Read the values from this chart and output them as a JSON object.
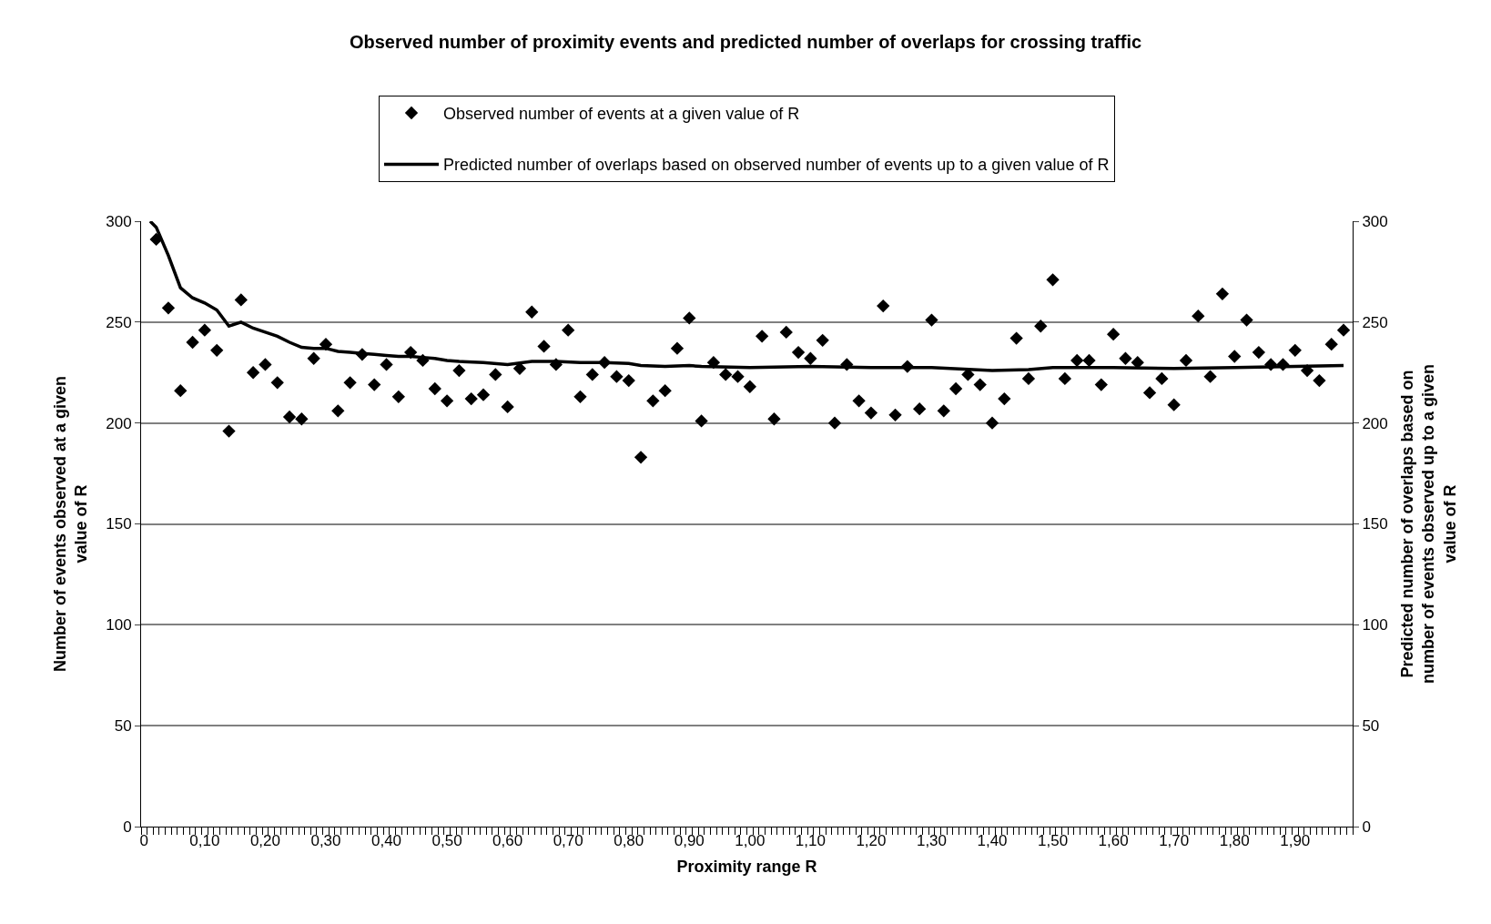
{
  "chart_data": {
    "type": "scatter",
    "title": "Observed number of proximity events and predicted number of overlaps for crossing traffic",
    "xlabel": "Proximity range R",
    "ylabel": "Number of events observed at a given value of R",
    "y2label": "Predicted number of overlaps based on number of events observed up to a given value of R",
    "series": [
      {
        "name": "Observed number of events at a given value of R",
        "color": "#000000",
        "marker": "diamond",
        "x": [
          0.02,
          0.04,
          0.06,
          0.08,
          0.1,
          0.12,
          0.14,
          0.16,
          0.18,
          0.2,
          0.22,
          0.24,
          0.26,
          0.28,
          0.3,
          0.32,
          0.34,
          0.36,
          0.38,
          0.4,
          0.42,
          0.44,
          0.46,
          0.48,
          0.5,
          0.52,
          0.54,
          0.56,
          0.58,
          0.6,
          0.62,
          0.64,
          0.66,
          0.68,
          0.7,
          0.72,
          0.74,
          0.76,
          0.78,
          0.8,
          0.82,
          0.84,
          0.86,
          0.88,
          0.9,
          0.92,
          0.94,
          0.96,
          0.98,
          1.0,
          1.02,
          1.04,
          1.06,
          1.08,
          1.1,
          1.12,
          1.14,
          1.16,
          1.18,
          1.2,
          1.22,
          1.24,
          1.26,
          1.28,
          1.3,
          1.32,
          1.34,
          1.36,
          1.38,
          1.4,
          1.42,
          1.44,
          1.46,
          1.48,
          1.5,
          1.52,
          1.54,
          1.56,
          1.58,
          1.6,
          1.62,
          1.64,
          1.66,
          1.68,
          1.7,
          1.72,
          1.74,
          1.76,
          1.78,
          1.8,
          1.82,
          1.84,
          1.86,
          1.88,
          1.9,
          1.92,
          1.94,
          1.96,
          1.98
        ],
        "values": [
          291,
          257,
          216,
          240,
          246,
          236,
          196,
          261,
          225,
          229,
          220,
          203,
          202,
          232,
          239,
          206,
          220,
          234,
          219,
          229,
          213,
          235,
          231,
          217,
          211,
          226,
          212,
          214,
          224,
          208,
          227,
          255,
          238,
          229,
          246,
          213,
          224,
          230,
          223,
          221,
          183,
          211,
          216,
          237,
          252,
          201,
          230,
          224,
          223,
          218,
          243,
          202,
          245,
          235,
          232,
          241,
          200,
          229,
          211,
          205,
          258,
          204,
          228,
          207,
          251,
          206,
          217,
          224,
          219,
          200,
          212,
          242,
          222,
          248,
          271,
          222,
          231,
          231,
          219,
          244,
          232,
          230,
          215,
          222,
          209,
          231,
          253,
          223,
          264,
          233,
          251,
          235,
          229,
          229,
          236,
          226,
          221,
          239,
          246
        ]
      },
      {
        "name": "Predicted number of overlaps based on observed number of events up to a given value of R",
        "type": "line",
        "axis": "y2",
        "color": "#000000",
        "marker": "none",
        "line_style": "solid",
        "x": [
          0.01,
          0.02,
          0.04,
          0.06,
          0.08,
          0.1,
          0.12,
          0.14,
          0.16,
          0.18,
          0.2,
          0.22,
          0.24,
          0.26,
          0.28,
          0.3,
          0.32,
          0.34,
          0.36,
          0.38,
          0.4,
          0.42,
          0.44,
          0.46,
          0.48,
          0.5,
          0.52,
          0.56,
          0.6,
          0.64,
          0.68,
          0.72,
          0.76,
          0.8,
          0.82,
          0.86,
          0.9,
          0.92,
          1.0,
          1.1,
          1.2,
          1.3,
          1.4,
          1.46,
          1.5,
          1.6,
          1.7,
          1.8,
          1.9,
          1.98
        ],
        "values": [
          300,
          297,
          283,
          267,
          262,
          259.5,
          256,
          248,
          250,
          247,
          245,
          243,
          240,
          237.5,
          237,
          237,
          235.5,
          235,
          234.5,
          234,
          233.5,
          233,
          233,
          232.5,
          232,
          231,
          230.5,
          230,
          229,
          230.5,
          230.5,
          230,
          230,
          229.5,
          228.5,
          228,
          228.5,
          228,
          227.5,
          228,
          227.5,
          227.5,
          226,
          226.5,
          227.5,
          227.5,
          227,
          227.5,
          228,
          228.5
        ]
      }
    ],
    "xlim": [
      -0.005,
      1.995
    ],
    "xticks": [
      {
        "value": 0,
        "label": "0"
      },
      {
        "value": 0.1,
        "label": "0,10"
      },
      {
        "value": 0.2,
        "label": "0,20"
      },
      {
        "value": 0.3,
        "label": "0,30"
      },
      {
        "value": 0.4,
        "label": "0,40"
      },
      {
        "value": 0.5,
        "label": "0,50"
      },
      {
        "value": 0.6,
        "label": "0,60"
      },
      {
        "value": 0.7,
        "label": "0,70"
      },
      {
        "value": 0.8,
        "label": "0,80"
      },
      {
        "value": 0.9,
        "label": "0,90"
      },
      {
        "value": 1.0,
        "label": "1,00"
      },
      {
        "value": 1.1,
        "label": "1,10"
      },
      {
        "value": 1.2,
        "label": "1,20"
      },
      {
        "value": 1.3,
        "label": "1,30"
      },
      {
        "value": 1.4,
        "label": "1,40"
      },
      {
        "value": 1.5,
        "label": "1,50"
      },
      {
        "value": 1.6,
        "label": "1,60"
      },
      {
        "value": 1.7,
        "label": "1,70"
      },
      {
        "value": 1.8,
        "label": "1,80"
      },
      {
        "value": 1.9,
        "label": "1,90"
      }
    ],
    "ylim": [
      0,
      300
    ],
    "yticks": [
      0,
      50,
      100,
      150,
      200,
      250,
      300
    ],
    "y2lim": [
      0,
      300
    ],
    "y2ticks": [
      0,
      50,
      100,
      150,
      200,
      250,
      300
    ],
    "grid": "y",
    "legend": "top"
  }
}
